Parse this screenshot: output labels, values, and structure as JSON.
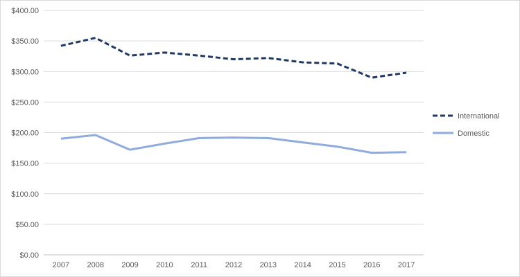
{
  "chart_data": {
    "type": "line",
    "title": "",
    "xlabel": "",
    "ylabel": "",
    "categories": [
      "2007",
      "2008",
      "2009",
      "2010",
      "2011",
      "2012",
      "2013",
      "2014",
      "2015",
      "2016",
      "2017"
    ],
    "y_ticks": [
      0,
      50,
      100,
      150,
      200,
      250,
      300,
      350,
      400
    ],
    "y_tick_labels": [
      "$0.00",
      "$50.00",
      "$100.00",
      "$150.00",
      "$200.00",
      "$250.00",
      "$300.00",
      "$350.00",
      "$400.00"
    ],
    "ylim": [
      0,
      400
    ],
    "grid": true,
    "legend_position": "right",
    "series": [
      {
        "name": "International",
        "color": "#1f3864",
        "line_style": "dashed",
        "values": [
          342,
          355,
          326,
          331,
          326,
          320,
          322,
          315,
          313,
          290,
          298
        ]
      },
      {
        "name": "Domestic",
        "color": "#8faadc",
        "line_style": "solid",
        "values": [
          190,
          196,
          172,
          182,
          191,
          192,
          191,
          184,
          177,
          167,
          168
        ]
      }
    ]
  }
}
